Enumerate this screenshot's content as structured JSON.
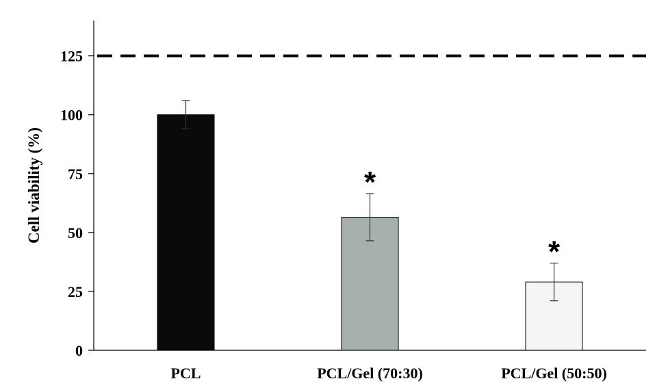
{
  "chart_data": {
    "type": "bar",
    "title": "",
    "xlabel": "",
    "ylabel": "Cell viability  (%)",
    "ylim": [
      0,
      140
    ],
    "yticks": [
      0,
      25,
      50,
      75,
      100,
      125
    ],
    "categories": [
      "PCL",
      "PCL/Gel (70:30)",
      "PCL/Gel (50:50)"
    ],
    "values": [
      100,
      56.5,
      29
    ],
    "errors": [
      6,
      10,
      8
    ],
    "bar_colors": [
      "#0a0a0a",
      "#a6b0ad",
      "#f3f5f6"
    ],
    "significance": [
      "",
      "*",
      "*"
    ],
    "reference_line": {
      "value": 125,
      "style": "dashed",
      "color": "#000000"
    },
    "grid": false,
    "legend": "none"
  }
}
